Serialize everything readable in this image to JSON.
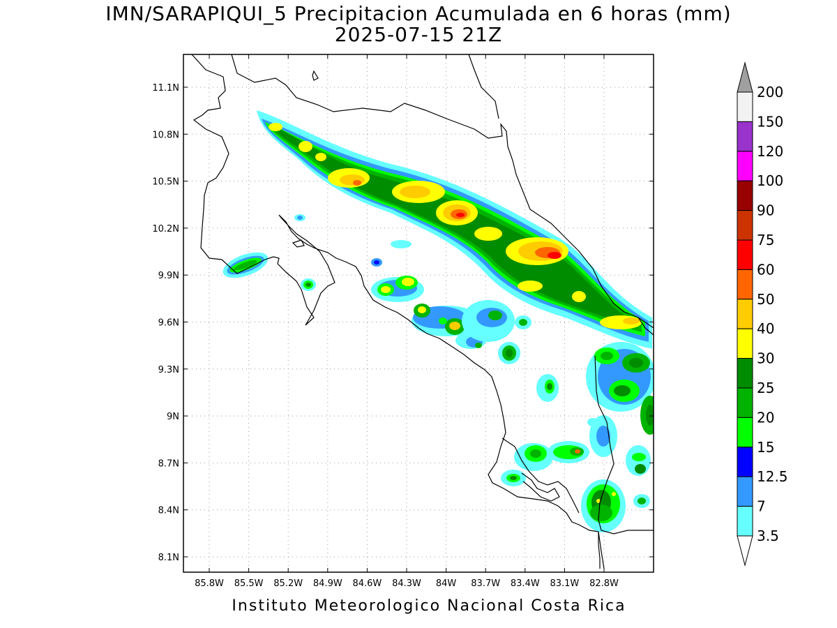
{
  "title": {
    "line1": "IMN/SARAPIQUI_5 Precipitacion Acumulada en 6 horas (mm)",
    "line2": "2025-07-15 21Z"
  },
  "credit": "Instituto Meteorologico Nacional Costa Rica",
  "map": {
    "type": "precipitation-map",
    "region": "Costa Rica",
    "lon_range": [
      -86.0,
      -82.55
    ],
    "lat_range": [
      7.95,
      11.28
    ],
    "x_ticks": [
      "85.8W",
      "85.5W",
      "85.2W",
      "84.9W",
      "84.6W",
      "84.3W",
      "84W",
      "83.7W",
      "83.4W",
      "83.1W",
      "82.8W"
    ],
    "y_ticks": [
      "11.1N",
      "10.8N",
      "10.5N",
      "10.2N",
      "9.9N",
      "9.6N",
      "9.3N",
      "9N",
      "8.7N",
      "8.4N",
      "8.1N"
    ],
    "grid": "dotted"
  },
  "colorbar": {
    "labels": [
      "200",
      "150",
      "120",
      "100",
      "90",
      "75",
      "60",
      "50",
      "40",
      "30",
      "25",
      "20",
      "15",
      "12.5",
      "7",
      "3.5"
    ],
    "colors": [
      "#f2f2f2",
      "#9933cc",
      "#ff00ff",
      "#990000",
      "#cc3300",
      "#ff0000",
      "#ff6600",
      "#ffcc00",
      "#ffff00",
      "#008c00",
      "#00b300",
      "#00ff00",
      "#0000ff",
      "#3399ff",
      "#66ffff"
    ],
    "top_arrow_color": "#a0a0a0",
    "bottom_arrow_color": "#ffffff"
  }
}
